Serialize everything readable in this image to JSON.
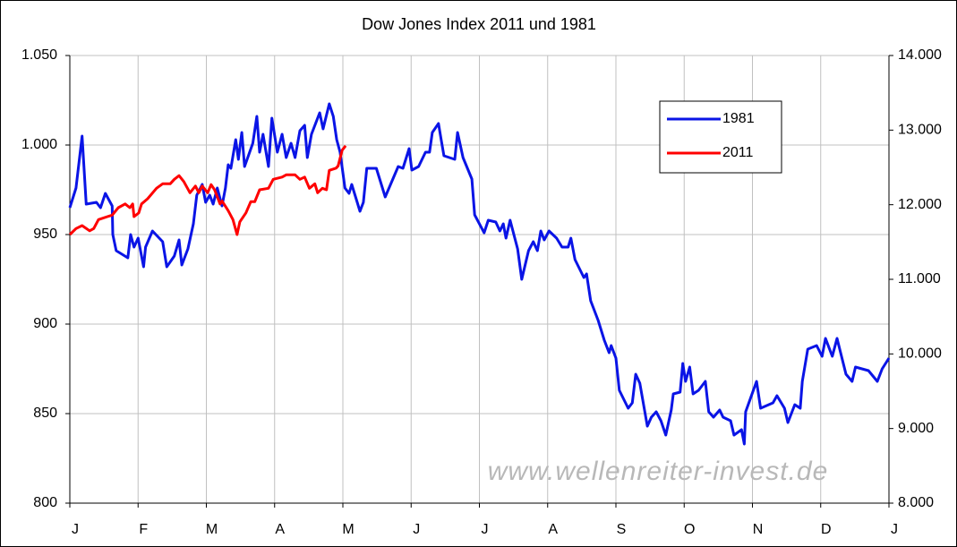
{
  "chart_data": {
    "type": "line",
    "title": "Dow Jones Index 2011 und 1981",
    "annotation": "www.wellenreiter-invest.de",
    "xlim": [
      0,
      12
    ],
    "xticks": [
      {
        "value": 0,
        "label": "J"
      },
      {
        "value": 1,
        "label": "F"
      },
      {
        "value": 2,
        "label": "M"
      },
      {
        "value": 3,
        "label": "A"
      },
      {
        "value": 4,
        "label": "M"
      },
      {
        "value": 5,
        "label": "J"
      },
      {
        "value": 6,
        "label": "J"
      },
      {
        "value": 7,
        "label": "A"
      },
      {
        "value": 8,
        "label": "S"
      },
      {
        "value": 9,
        "label": "O"
      },
      {
        "value": 10,
        "label": "N"
      },
      {
        "value": 11,
        "label": "D"
      },
      {
        "value": 12,
        "label": "J"
      }
    ],
    "ylim": [
      800,
      1050
    ],
    "yticks": [
      800,
      850,
      900,
      950,
      {
        "value": 1000,
        "label": "1.000"
      },
      {
        "value": 1050,
        "label": "1.050"
      }
    ],
    "y2lim": [
      8000,
      14000
    ],
    "y2ticks": [
      {
        "value": 8000,
        "label": "8.000"
      },
      {
        "value": 9000,
        "label": "9.000"
      },
      {
        "value": 10000,
        "label": "10.000"
      },
      {
        "value": 11000,
        "label": "11.000"
      },
      {
        "value": 12000,
        "label": "12.000"
      },
      {
        "value": 13000,
        "label": "13.000"
      },
      {
        "value": 14000,
        "label": "14.000"
      }
    ],
    "grid": true,
    "legend": "upper right",
    "series": [
      {
        "name": "1981",
        "color": "#0a14e6",
        "axis": "y",
        "x": [
          0,
          0.09,
          0.18,
          0.24,
          0.39,
          0.45,
          0.52,
          0.62,
          0.63,
          0.68,
          0.85,
          0.89,
          0.94,
          1.0,
          1.08,
          1.11,
          1.21,
          1.36,
          1.42,
          1.53,
          1.6,
          1.64,
          1.73,
          1.81,
          1.86,
          1.94,
          1.99,
          2.05,
          2.1,
          2.16,
          2.23,
          2.28,
          2.32,
          2.36,
          2.43,
          2.47,
          2.52,
          2.56,
          2.68,
          2.74,
          2.78,
          2.83,
          2.91,
          2.96,
          3.04,
          3.11,
          3.17,
          3.24,
          3.3,
          3.37,
          3.44,
          3.48,
          3.54,
          3.66,
          3.71,
          3.8,
          3.86,
          3.91,
          3.96,
          4.03,
          4.09,
          4.13,
          4.25,
          4.3,
          4.35,
          4.49,
          4.62,
          4.81,
          4.88,
          4.97,
          5.01,
          5.11,
          5.21,
          5.27,
          5.31,
          5.4,
          5.44,
          5.48,
          5.64,
          5.68,
          5.76,
          5.89,
          5.93,
          6.07,
          6.13,
          6.24,
          6.3,
          6.35,
          6.39,
          6.45,
          6.56,
          6.62,
          6.72,
          6.79,
          6.85,
          6.9,
          6.95,
          7.02,
          7.13,
          7.21,
          7.3,
          7.34,
          7.4,
          7.53,
          7.57,
          7.63,
          7.74,
          7.83,
          7.9,
          7.93,
          8.0,
          8.05,
          8.18,
          8.24,
          8.29,
          8.35,
          8.46,
          8.52,
          8.59,
          8.66,
          8.73,
          8.81,
          8.84,
          8.94,
          8.98,
          9.02,
          9.08,
          9.13,
          9.21,
          9.31,
          9.36,
          9.43,
          9.52,
          9.57,
          9.68,
          9.73,
          9.84,
          9.88,
          9.9,
          10.06,
          10.12,
          10.3,
          10.36,
          10.47,
          10.52,
          10.62,
          10.7,
          10.73,
          10.81,
          10.94,
          11.02,
          11.07,
          11.17,
          11.24,
          11.37,
          11.46,
          11.51,
          11.7,
          11.83,
          11.9,
          12.0
        ],
        "values": [
          965,
          976,
          1005,
          967,
          968,
          965,
          973,
          966,
          950,
          941,
          937,
          950,
          943,
          948,
          932,
          943,
          952,
          946,
          932,
          938,
          947,
          933,
          942,
          956,
          972,
          978,
          968,
          972,
          967,
          976,
          966,
          976,
          989,
          987,
          1003,
          992,
          1007,
          988,
          1001,
          1016,
          996,
          1006,
          988,
          1015,
          996,
          1006,
          993,
          1001,
          993,
          1008,
          1011,
          993,
          1006,
          1018,
          1009,
          1023,
          1016,
          1003,
          996,
          976,
          973,
          978,
          963,
          968,
          987,
          987,
          971,
          988,
          987,
          998,
          986,
          988,
          996,
          996,
          1007,
          1012,
          1003,
          994,
          992,
          1007,
          993,
          981,
          961,
          951,
          958,
          957,
          952,
          956,
          948,
          958,
          942,
          925,
          941,
          946,
          941,
          952,
          947,
          952,
          948,
          943,
          943,
          948,
          936,
          926,
          928,
          913,
          902,
          891,
          884,
          888,
          881,
          863,
          853,
          856,
          872,
          867,
          843,
          848,
          851,
          846,
          838,
          852,
          861,
          862,
          878,
          868,
          876,
          861,
          863,
          868,
          851,
          848,
          852,
          848,
          846,
          838,
          841,
          833,
          851,
          868,
          853,
          856,
          860,
          853,
          845,
          855,
          853,
          868,
          886,
          888,
          882,
          892,
          882,
          892,
          872,
          868,
          876,
          874,
          868,
          875,
          881
        ]
      },
      {
        "name": "2011",
        "color": "#ff0000",
        "axis": "y2",
        "x": [
          0,
          0.09,
          0.18,
          0.29,
          0.35,
          0.42,
          0.55,
          0.62,
          0.71,
          0.81,
          0.88,
          0.92,
          0.94,
          1.01,
          1.05,
          1.14,
          1.27,
          1.36,
          1.47,
          1.53,
          1.6,
          1.67,
          1.76,
          1.84,
          1.89,
          1.94,
          2.02,
          2.07,
          2.12,
          2.2,
          2.23,
          2.32,
          2.39,
          2.45,
          2.49,
          2.58,
          2.65,
          2.71,
          2.78,
          2.91,
          2.98,
          3.11,
          3.17,
          3.3,
          3.37,
          3.44,
          3.51,
          3.59,
          3.63,
          3.7,
          3.76,
          3.8,
          3.9,
          3.93,
          3.99,
          4.04
        ],
        "values": [
          11600,
          11680,
          11720,
          11650,
          11680,
          11800,
          11840,
          11860,
          11960,
          12010,
          11960,
          12010,
          11840,
          11890,
          12010,
          12080,
          12220,
          12280,
          12280,
          12340,
          12390,
          12310,
          12160,
          12250,
          12160,
          12250,
          12160,
          12270,
          12200,
          12010,
          12050,
          11920,
          11800,
          11600,
          11770,
          11890,
          12040,
          12040,
          12200,
          12220,
          12340,
          12370,
          12400,
          12400,
          12340,
          12370,
          12220,
          12280,
          12160,
          12220,
          12200,
          12460,
          12490,
          12520,
          12730,
          12790
        ]
      }
    ]
  }
}
